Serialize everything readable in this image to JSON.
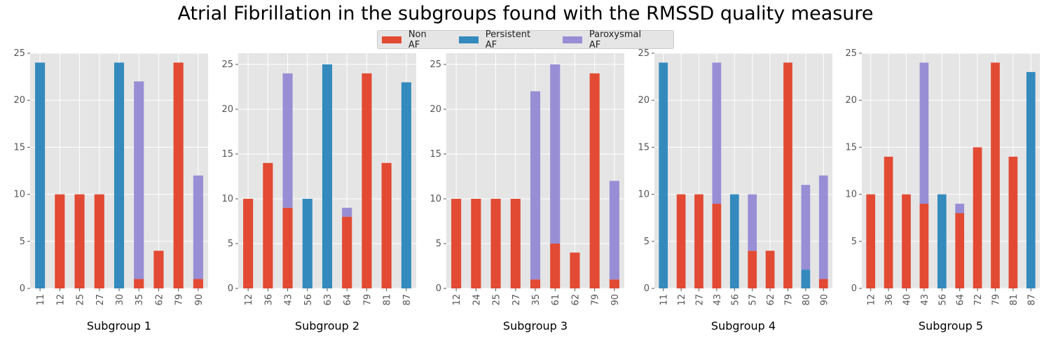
{
  "title": "Atrial Fibrillation in the subgroups found with the RMSSD quality measure",
  "legend": [
    {
      "name": "Non AF",
      "color": "#e24a33"
    },
    {
      "name": "Persistent AF",
      "color": "#348abd"
    },
    {
      "name": "Paroxysmal AF",
      "color": "#988ed5"
    }
  ],
  "chart_data": [
    {
      "type": "bar",
      "stacked": true,
      "xlabel": "Subgroup 1",
      "ylim": [
        0,
        25
      ],
      "yticks": [
        0,
        5,
        10,
        15,
        20,
        25
      ],
      "categories": [
        "11",
        "12",
        "25",
        "27",
        "30",
        "35",
        "62",
        "79",
        "90"
      ],
      "series": [
        {
          "name": "Non AF",
          "values": [
            0,
            10,
            10,
            10,
            0,
            1,
            4,
            24,
            1
          ]
        },
        {
          "name": "Persistent AF",
          "values": [
            24,
            0,
            0,
            0,
            24,
            0,
            0,
            0,
            0
          ]
        },
        {
          "name": "Paroxysmal AF",
          "values": [
            0,
            0,
            0,
            0,
            0,
            21,
            0,
            0,
            11
          ]
        }
      ]
    },
    {
      "type": "bar",
      "stacked": true,
      "xlabel": "Subgroup 2",
      "ylim": [
        0,
        26.25
      ],
      "yticks": [
        0,
        5,
        10,
        15,
        20,
        25
      ],
      "categories": [
        "12",
        "36",
        "43",
        "56",
        "63",
        "64",
        "79",
        "81",
        "87"
      ],
      "series": [
        {
          "name": "Non AF",
          "values": [
            10,
            14,
            9,
            0,
            0,
            8,
            24,
            14,
            0
          ]
        },
        {
          "name": "Persistent AF",
          "values": [
            0,
            0,
            0,
            10,
            25,
            0,
            0,
            0,
            23
          ]
        },
        {
          "name": "Paroxysmal AF",
          "values": [
            0,
            0,
            15,
            0,
            0,
            1,
            0,
            0,
            0
          ]
        }
      ]
    },
    {
      "type": "bar",
      "stacked": true,
      "xlabel": "Subgroup 3",
      "ylim": [
        0,
        26.25
      ],
      "yticks": [
        0,
        5,
        10,
        15,
        20,
        25
      ],
      "categories": [
        "12",
        "24",
        "25",
        "27",
        "35",
        "61",
        "62",
        "79",
        "90"
      ],
      "series": [
        {
          "name": "Non AF",
          "values": [
            10,
            10,
            10,
            10,
            1,
            5,
            4,
            24,
            1
          ]
        },
        {
          "name": "Persistent AF",
          "values": [
            0,
            0,
            0,
            0,
            0,
            0,
            0,
            0,
            0
          ]
        },
        {
          "name": "Paroxysmal AF",
          "values": [
            0,
            0,
            0,
            0,
            21,
            20,
            0,
            0,
            11
          ]
        }
      ]
    },
    {
      "type": "bar",
      "stacked": true,
      "xlabel": "Subgroup 4",
      "ylim": [
        0,
        25
      ],
      "yticks": [
        0,
        5,
        10,
        15,
        20,
        25
      ],
      "categories": [
        "11",
        "12",
        "27",
        "43",
        "56",
        "57",
        "62",
        "79",
        "80",
        "90"
      ],
      "series": [
        {
          "name": "Non AF",
          "values": [
            0,
            10,
            10,
            9,
            0,
            4,
            4,
            24,
            0,
            1
          ]
        },
        {
          "name": "Persistent AF",
          "values": [
            24,
            0,
            0,
            0,
            10,
            0,
            0,
            0,
            2,
            0
          ]
        },
        {
          "name": "Paroxysmal AF",
          "values": [
            0,
            0,
            0,
            15,
            0,
            6,
            0,
            0,
            9,
            11
          ]
        }
      ]
    },
    {
      "type": "bar",
      "stacked": true,
      "xlabel": "Subgroup 5",
      "ylim": [
        0,
        25
      ],
      "yticks": [
        0,
        5,
        10,
        15,
        20,
        25
      ],
      "categories": [
        "12",
        "36",
        "40",
        "43",
        "56",
        "64",
        "72",
        "79",
        "81",
        "87"
      ],
      "series": [
        {
          "name": "Non AF",
          "values": [
            10,
            14,
            10,
            9,
            0,
            8,
            15,
            24,
            14,
            0
          ]
        },
        {
          "name": "Persistent AF",
          "values": [
            0,
            0,
            0,
            0,
            10,
            0,
            0,
            0,
            0,
            23
          ]
        },
        {
          "name": "Paroxysmal AF",
          "values": [
            0,
            0,
            0,
            15,
            0,
            1,
            0,
            0,
            0,
            0
          ]
        }
      ]
    }
  ]
}
